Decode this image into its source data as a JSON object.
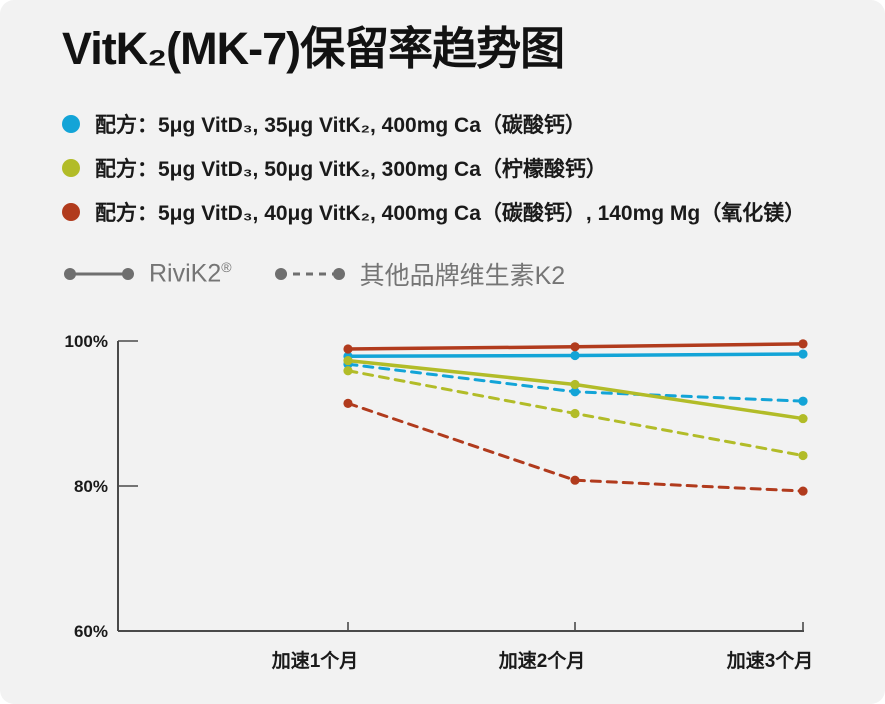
{
  "page": {
    "background": "#ffffff",
    "card_background": "#f2f2f2"
  },
  "title": "VitK₂(MK-7)保留率趋势图",
  "formula_legend": [
    {
      "color": "#13a4d7",
      "label": "配方：5μg VitD₃, 35μg VitK₂, 400mg Ca（碳酸钙）"
    },
    {
      "color": "#b2bc28",
      "label": "配方：5μg VitD₃, 50μg VitK₂, 300mg Ca（柠檬酸钙）"
    },
    {
      "color": "#b13b1d",
      "label": "配方：5μg VitD₃, 40μg VitK₂, 400mg Ca（碳酸钙）, 140mg Mg（氧化镁）"
    }
  ],
  "series_legend": [
    {
      "style": "solid",
      "label": "RiviK2",
      "mark": "®"
    },
    {
      "style": "dashed",
      "label": "其他品牌维生素K2",
      "mark": ""
    }
  ],
  "series_legend_color": "#6f6f6f",
  "chart_data": {
    "type": "line",
    "categories": [
      "加速1个月",
      "加速2个月",
      "加速3个月"
    ],
    "xlabel": "",
    "ylabel": "",
    "ylim": [
      60,
      100
    ],
    "y_ticks": [
      {
        "value": 100,
        "label": "100%"
      },
      {
        "value": 80,
        "label": "80%"
      },
      {
        "value": 60,
        "label": "60%"
      }
    ],
    "grid": false,
    "legend_position": "above-chart",
    "axis_color": "#4a4a4a",
    "series": [
      {
        "name": "配方1 (35μg VitK₂) RiviK2",
        "color": "#13a4d7",
        "dash": false,
        "values": [
          97.9,
          98.0,
          98.2
        ]
      },
      {
        "name": "配方1 (35μg VitK₂) 其他品牌",
        "color": "#13a4d7",
        "dash": true,
        "values": [
          96.8,
          93.0,
          91.7
        ]
      },
      {
        "name": "配方2 (50μg VitK₂) RiviK2",
        "color": "#b2bc28",
        "dash": false,
        "values": [
          97.3,
          94.0,
          89.3
        ]
      },
      {
        "name": "配方2 (50μg VitK₂) 其他品牌",
        "color": "#b2bc28",
        "dash": true,
        "values": [
          95.9,
          90.0,
          84.2
        ]
      },
      {
        "name": "配方3 (40μg VitK₂+Mg) RiviK2",
        "color": "#b13b1d",
        "dash": false,
        "values": [
          98.9,
          99.2,
          99.6
        ]
      },
      {
        "name": "配方3 (40μg VitK₂+Mg) 其他品牌",
        "color": "#b13b1d",
        "dash": true,
        "values": [
          91.4,
          80.8,
          79.3
        ]
      }
    ]
  }
}
